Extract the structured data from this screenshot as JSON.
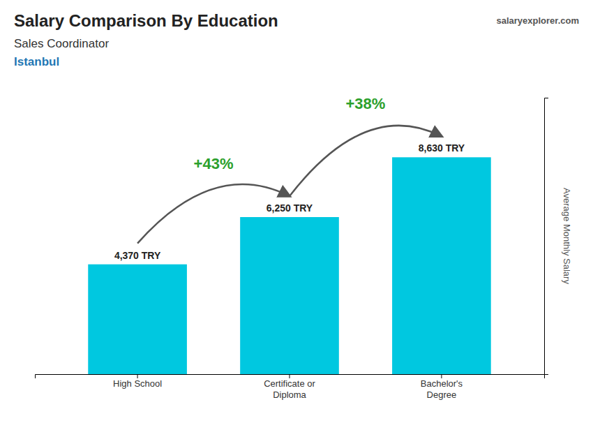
{
  "chart_data": {
    "type": "bar",
    "title": "Salary Comparison By Education",
    "subtitle": "Sales Coordinator",
    "location": "Istanbul",
    "source": "salaryexplorer.com",
    "y_label": "Average Monthly Salary",
    "categories": [
      "High School",
      "Certificate or\nDiploma",
      "Bachelor's\nDegree"
    ],
    "values": [
      4370,
      6250,
      8630
    ],
    "value_labels": [
      "4,370 TRY",
      "6,250 TRY",
      "8,630 TRY"
    ],
    "data_labels": true,
    "annotations": [
      "+43%",
      "+38%"
    ],
    "color": "#00c8e0",
    "ylim": [
      0,
      11000
    ],
    "tick_labels": "x",
    "grid": false
  }
}
